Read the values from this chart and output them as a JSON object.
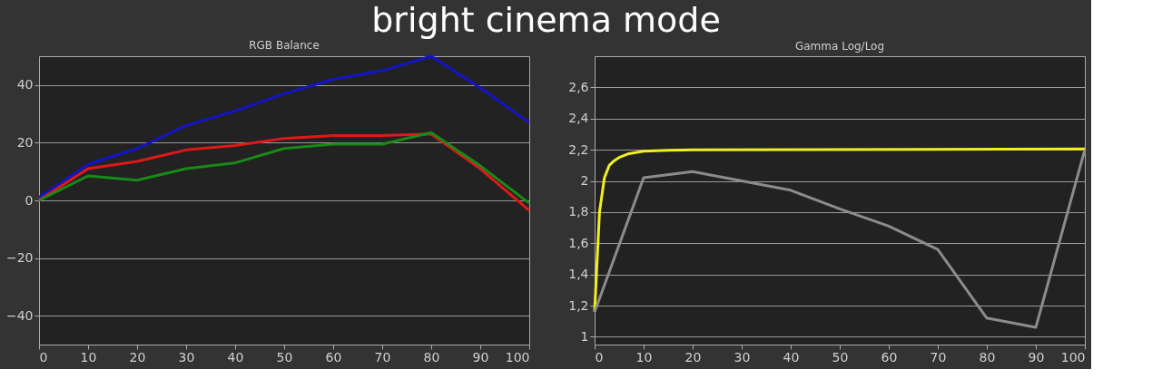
{
  "chart_data": [
    {
      "type": "line",
      "title": "RGB Balance",
      "annotations": [
        "bright cinema mode"
      ],
      "x": [
        0,
        10,
        20,
        30,
        40,
        50,
        60,
        70,
        80,
        90,
        100
      ],
      "series": [
        {
          "color": "#1414c8",
          "values": [
            1,
            12.5,
            18,
            26,
            31,
            37,
            42,
            45,
            50,
            39,
            27
          ]
        },
        {
          "color": "#e01818",
          "values": [
            0,
            11,
            13.5,
            17.5,
            19,
            21.5,
            22.5,
            22.5,
            23,
            11,
            -3.5
          ]
        },
        {
          "color": "#188a18",
          "values": [
            0,
            8.5,
            7,
            11,
            13,
            18,
            19.5,
            19.5,
            23.5,
            12,
            -1
          ]
        }
      ],
      "xlim": [
        0,
        100
      ],
      "xticks": [
        0,
        10,
        20,
        30,
        40,
        50,
        60,
        70,
        80,
        90,
        100
      ],
      "ylim": [
        -50,
        50
      ],
      "yticks": [
        -40,
        -20,
        0,
        20,
        40
      ],
      "grid": "y",
      "legend": false
    },
    {
      "type": "line",
      "title": "Gamma Log/Log",
      "series": [
        {
          "color": "#f0f020",
          "x": [
            0,
            1,
            2,
            3,
            4,
            5,
            7,
            10,
            15,
            20,
            100
          ],
          "values": [
            1.16,
            1.8,
            2.02,
            2.1,
            2.13,
            2.15,
            2.175,
            2.19,
            2.197,
            2.2,
            2.205
          ]
        },
        {
          "color": "#8c8c8c",
          "x": [
            0,
            10,
            20,
            30,
            40,
            50,
            60,
            70,
            80,
            90,
            100
          ],
          "values": [
            1.16,
            2.02,
            2.06,
            2.0,
            1.94,
            1.82,
            1.71,
            1.56,
            1.12,
            1.06,
            2.2
          ]
        }
      ],
      "xlim": [
        0,
        100
      ],
      "xticks": [
        0,
        10,
        20,
        30,
        40,
        50,
        60,
        70,
        80,
        90,
        100
      ],
      "ylim": [
        0.95,
        2.8
      ],
      "yticks": [
        1,
        {
          "value": 1.2,
          "label": "1,2"
        },
        {
          "value": 1.4,
          "label": "1,4"
        },
        {
          "value": 1.6,
          "label": "1,6"
        },
        {
          "value": 1.8,
          "label": "1,8"
        },
        2,
        {
          "value": 2.2,
          "label": "2,2"
        },
        {
          "value": 2.4,
          "label": "2,4"
        },
        {
          "value": 2.6,
          "label": "2,6"
        }
      ],
      "grid": "y",
      "legend": false
    }
  ]
}
